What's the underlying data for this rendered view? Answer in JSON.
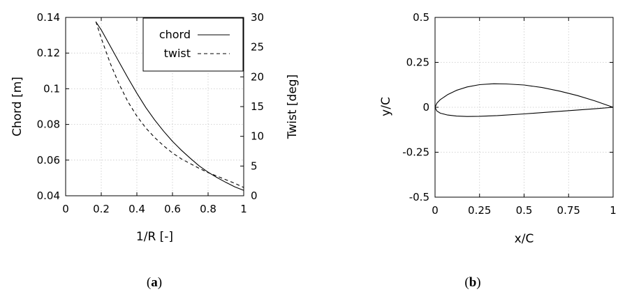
{
  "chart_data": [
    {
      "type": "line",
      "panel_label_prefix": "(",
      "panel_label_letter": "a",
      "panel_label_suffix": ")",
      "xlabel": "1/R [-]",
      "ylabel": "Chord [m]",
      "y2label": "Twist [deg]",
      "xlim": [
        0,
        1
      ],
      "ylim": [
        0.04,
        0.14
      ],
      "y2lim": [
        0,
        30
      ],
      "x_ticks": [
        "0",
        "0.2",
        "0.4",
        "0.6",
        "0.8",
        "1"
      ],
      "y_ticks": [
        "0.04",
        "0.06",
        "0.08",
        "0.1",
        "0.12",
        "0.14"
      ],
      "y2_ticks": [
        "0",
        "5",
        "10",
        "15",
        "20",
        "25",
        "30"
      ],
      "grid": true,
      "legend_position": "top-right",
      "series": [
        {
          "name": "chord",
          "axis": "left",
          "style": "solid",
          "x": [
            0.17,
            0.2,
            0.25,
            0.3,
            0.35,
            0.4,
            0.45,
            0.5,
            0.55,
            0.6,
            0.65,
            0.7,
            0.75,
            0.8,
            0.85,
            0.9,
            0.95,
            1.0
          ],
          "y": [
            0.1375,
            0.133,
            0.124,
            0.115,
            0.106,
            0.0975,
            0.0895,
            0.0825,
            0.0762,
            0.0705,
            0.0655,
            0.061,
            0.0567,
            0.0532,
            0.0502,
            0.0475,
            0.045,
            0.043
          ]
        },
        {
          "name": "twist",
          "axis": "right",
          "style": "dashed",
          "x": [
            0.17,
            0.2,
            0.25,
            0.3,
            0.35,
            0.4,
            0.45,
            0.5,
            0.55,
            0.6,
            0.65,
            0.7,
            0.75,
            0.8,
            0.85,
            0.9,
            0.95,
            1.0
          ],
          "y": [
            29.3,
            26.5,
            22.3,
            18.8,
            15.8,
            13.4,
            11.4,
            9.8,
            8.4,
            7.2,
            6.2,
            5.4,
            4.6,
            3.9,
            3.3,
            2.7,
            2.1,
            1.4
          ]
        }
      ]
    },
    {
      "type": "line",
      "panel_label_prefix": "(",
      "panel_label_letter": "b",
      "panel_label_suffix": ")",
      "xlabel": "x/C",
      "ylabel": "y/C",
      "xlim": [
        0,
        1
      ],
      "ylim": [
        -0.5,
        0.5
      ],
      "x_ticks": [
        "0",
        "0.25",
        "0.5",
        "0.75",
        "1"
      ],
      "y_ticks": [
        "-0.5",
        "-0.25",
        "0",
        "0.25",
        "0.5"
      ],
      "grid": true,
      "series": [
        {
          "style": "solid",
          "x": [
            1.0,
            0.9,
            0.8,
            0.7,
            0.6,
            0.5,
            0.4,
            0.33,
            0.25,
            0.18,
            0.12,
            0.07,
            0.03,
            0.01,
            0.0,
            0.01,
            0.03,
            0.07,
            0.12,
            0.18,
            0.25,
            0.35,
            0.5,
            0.65,
            0.8,
            0.9,
            1.0
          ],
          "y": [
            0.0,
            0.035,
            0.065,
            0.09,
            0.11,
            0.124,
            0.13,
            0.131,
            0.126,
            0.113,
            0.094,
            0.07,
            0.043,
            0.022,
            0.0,
            -0.02,
            -0.033,
            -0.043,
            -0.049,
            -0.051,
            -0.05,
            -0.046,
            -0.037,
            -0.026,
            -0.015,
            -0.008,
            0.0
          ]
        }
      ]
    }
  ]
}
